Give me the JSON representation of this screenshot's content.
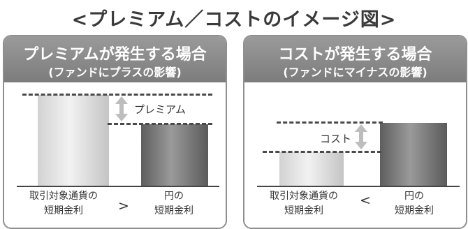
{
  "title": "<プレミアム／コストのイメージ図>",
  "panels": [
    {
      "title": "プレミアムが発生する場合",
      "subtitle": "(ファンドにプラスの影響)",
      "difference_label": "プレミアム",
      "comparison": ">",
      "left_bar": {
        "label_line1": "取引対象通貨の",
        "label_line2": "短期金利",
        "shade": "light"
      },
      "right_bar": {
        "label_line1": "円の",
        "label_line2": "短期金利",
        "shade": "dark"
      }
    },
    {
      "title": "コストが発生する場合",
      "subtitle": "(ファンドにマイナスの影響)",
      "difference_label": "コスト",
      "comparison": "<",
      "left_bar": {
        "label_line1": "取引対象通貨の",
        "label_line2": "短期金利",
        "shade": "light"
      },
      "right_bar": {
        "label_line1": "円の",
        "label_line2": "短期金利",
        "shade": "dark"
      }
    }
  ],
  "colors": {
    "header": "#8a8a8a",
    "light_bar": "#e6e6e6",
    "dark_bar": "#7a7a7a",
    "border": "#8f8f8f"
  },
  "icons": [
    "double-headed-arrow-icon"
  ]
}
